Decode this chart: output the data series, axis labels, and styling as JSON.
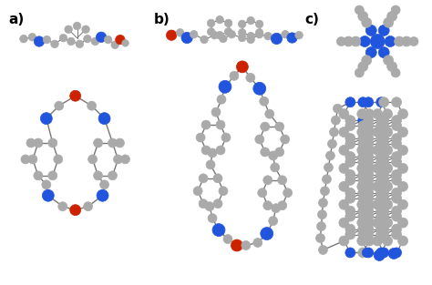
{
  "background_color": "#ffffff",
  "labels": [
    "a)",
    "b)",
    "c)"
  ],
  "label_fontsize": 11,
  "label_fontweight": "bold",
  "fig_width": 4.74,
  "fig_height": 3.13,
  "dpi": 100,
  "gray": "#aaaaaa",
  "blue": "#2255dd",
  "red": "#cc2200",
  "dark_edge": "#555555"
}
